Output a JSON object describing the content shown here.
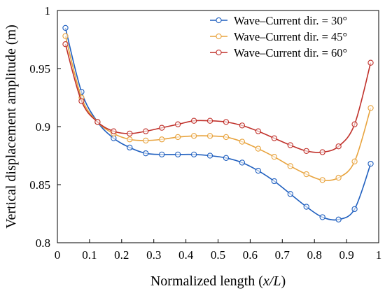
{
  "chart_data": {
    "type": "line",
    "xlabel": "Normalized length (x/L)",
    "xlabel_parts": {
      "pre": "Normalized length (",
      "var": "x/L",
      "post": ")"
    },
    "ylabel": "Vertical displacement amplitude (m)",
    "xlim": [
      0,
      1
    ],
    "ylim": [
      0.8,
      1.0
    ],
    "xticks": [
      0,
      0.1,
      0.2,
      0.3,
      0.4,
      0.5,
      0.6,
      0.7,
      0.8,
      0.9,
      1
    ],
    "xtick_labels": [
      "0",
      "0.1",
      "0.2",
      "0.3",
      "0.4",
      "0.5",
      "0.6",
      "0.7",
      "0.8",
      "0.9",
      "1"
    ],
    "yticks": [
      0.8,
      0.85,
      0.9,
      0.95,
      1.0
    ],
    "ytick_labels": [
      "0.8",
      "0.85",
      "0.9",
      "0.95",
      "1"
    ],
    "grid": false,
    "legend": "top-right",
    "x": [
      0.025,
      0.075,
      0.125,
      0.175,
      0.225,
      0.275,
      0.325,
      0.375,
      0.425,
      0.475,
      0.525,
      0.575,
      0.625,
      0.675,
      0.725,
      0.775,
      0.825,
      0.875,
      0.925,
      0.975
    ],
    "series": [
      {
        "name": "Wave–Current dir. = 30°",
        "color": "#1f5fbf",
        "values": [
          0.985,
          0.93,
          0.904,
          0.89,
          0.882,
          0.877,
          0.876,
          0.876,
          0.876,
          0.875,
          0.873,
          0.869,
          0.862,
          0.853,
          0.842,
          0.831,
          0.822,
          0.82,
          0.829,
          0.868
        ]
      },
      {
        "name": "Wave–Current dir. = 45°",
        "color": "#e8a33d",
        "values": [
          0.978,
          0.925,
          0.904,
          0.894,
          0.889,
          0.888,
          0.889,
          0.891,
          0.892,
          0.892,
          0.891,
          0.887,
          0.881,
          0.874,
          0.866,
          0.859,
          0.854,
          0.856,
          0.87,
          0.916
        ]
      },
      {
        "name": "Wave–Current dir. = 60°",
        "color": "#c0302a",
        "values": [
          0.971,
          0.922,
          0.904,
          0.896,
          0.894,
          0.896,
          0.899,
          0.902,
          0.905,
          0.905,
          0.904,
          0.901,
          0.896,
          0.89,
          0.884,
          0.879,
          0.878,
          0.883,
          0.902,
          0.955
        ]
      }
    ]
  }
}
